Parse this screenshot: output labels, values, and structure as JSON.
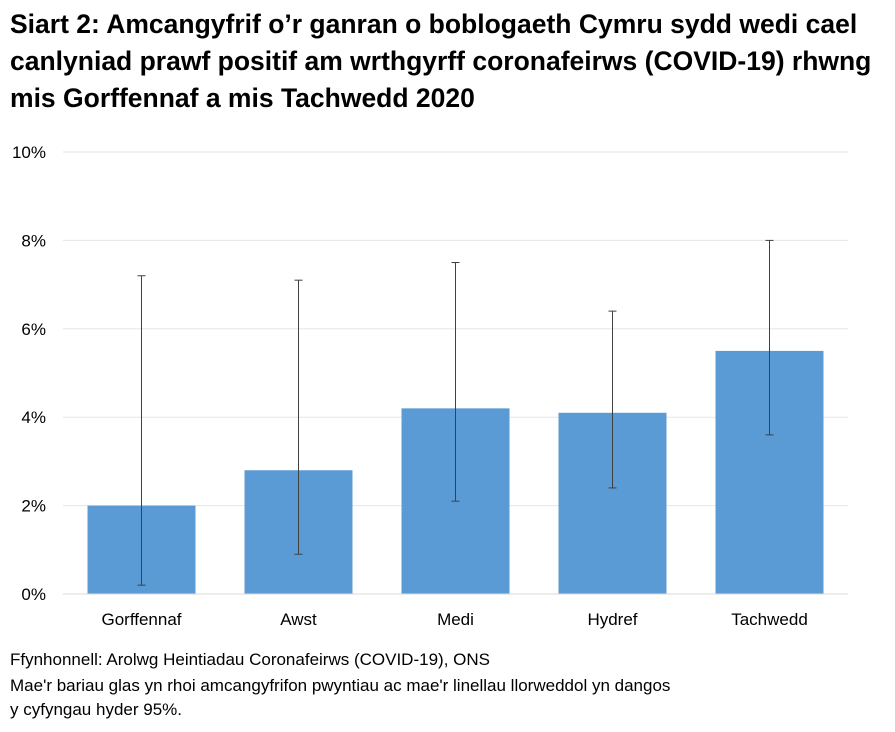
{
  "chart_data": {
    "type": "bar",
    "title": "Siart 2: Amcangyfrif o’r ganran o boblogaeth Cymru sydd wedi cael canlyniad prawf positif am wrthgyrff coronafeirws (COVID-19) rhwng mis Gorffennaf a mis Tachwedd 2020",
    "categories": [
      "Gorffennaf",
      "Awst",
      "Medi",
      "Hydref",
      "Tachwedd"
    ],
    "values": [
      2.0,
      2.8,
      4.2,
      4.1,
      5.5
    ],
    "ci_lower": [
      0.2,
      0.9,
      2.1,
      2.4,
      3.6
    ],
    "ci_upper": [
      7.2,
      7.1,
      7.5,
      6.4,
      8.0
    ],
    "ylim": [
      0,
      10
    ],
    "yticks": [
      "0%",
      "2%",
      "4%",
      "6%",
      "8%",
      "10%"
    ],
    "ytick_values": [
      0,
      2,
      4,
      6,
      8,
      10
    ],
    "xlabel": "",
    "ylabel": "",
    "grid": true,
    "bar_color": "#5b9bd5",
    "errorbar_color": "#404040"
  },
  "footer": {
    "source": "Ffynhonnell: Arolwg Heintiadau Coronafeirws (COVID-19), ONS",
    "note_line1": "Mae'r bariau glas yn rhoi amcangyfrifon pwyntiau ac mae'r linellau llorweddol yn dangos",
    "note_line2": "y cyfyngau hyder 95%."
  }
}
